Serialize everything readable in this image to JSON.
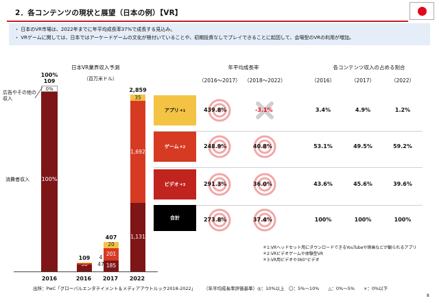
{
  "header": {
    "title": "2．各コンテンツの現状と展望（日本の例）【VR】",
    "bullets": [
      "日本のVR市場は、2022年までに年平均成長率37%で成長する見込み。",
      "VRゲームに関しては、日本ではアーケードゲームの文化が根付いていることや、初期投資なしでプレイできることに起因して、会場型のVRの利用が増加。"
    ]
  },
  "chart_data": {
    "type": "bar",
    "title": "日本VR業界収入予測",
    "unit_label": "（百万米ドル）",
    "categories": [
      "2016",
      "2016",
      "2017",
      "2022"
    ],
    "share_column": {
      "category": "2016",
      "total_pct_label": "100%",
      "total_value_label": "109",
      "segments": [
        {
          "name": "消費者収入",
          "pct_label": "100%"
        },
        {
          "name": "広告やその他の収入",
          "pct_label": "0%"
        }
      ]
    },
    "stacks": [
      {
        "category": "2016",
        "total": 109,
        "total_label": "109",
        "segments": [
          {
            "value": 58,
            "label": "58"
          },
          {
            "value": 47,
            "label": "47"
          },
          {
            "value": 4,
            "label": "4"
          }
        ]
      },
      {
        "category": "2017",
        "total": 407,
        "total_label": "407",
        "segments": [
          {
            "value": 185,
            "label": "185"
          },
          {
            "value": 201,
            "label": "201"
          },
          {
            "value": 20,
            "label": "20"
          }
        ]
      },
      {
        "category": "2022",
        "total": 2859,
        "total_label": "2,859",
        "segments": [
          {
            "value": 1131,
            "label": "1,131"
          },
          {
            "value": 1692,
            "label": "1,692"
          },
          {
            "value": 35,
            "label": "35"
          }
        ]
      }
    ],
    "y_axis_labels": [
      "広告やその他の収入",
      "消費者収入"
    ]
  },
  "table": {
    "cagr_header": "年平均成長率",
    "cagr_periods": [
      "（2016～2017）",
      "（2018～2022）"
    ],
    "share_header": "各コンテンツ収入の占める割合",
    "share_years": [
      "（2016）",
      "（2017）",
      "（2022）"
    ],
    "rows": [
      {
        "label": "アプリ",
        "note": "＊1",
        "cagr1": "439.8%",
        "mark1": "double-circle",
        "cagr2": "-3.1%",
        "mark2": "cross",
        "s2016": "3.4%",
        "s2017": "4.9%",
        "s2022": "1.2%"
      },
      {
        "label": "ゲーム",
        "note": "＊2",
        "cagr1": "248.9%",
        "mark1": "double-circle",
        "cagr2": "40.8%",
        "mark2": "double-circle",
        "s2016": "53.1%",
        "s2017": "49.5%",
        "s2022": "59.2%"
      },
      {
        "label": "ビデオ",
        "note": "＊3",
        "cagr1": "291.3%",
        "mark1": "double-circle",
        "cagr2": "36.0%",
        "mark2": "double-circle",
        "s2016": "43.6%",
        "s2017": "45.6%",
        "s2022": "39.6%"
      },
      {
        "label": "合計",
        "note": "",
        "cagr1": "273.8%",
        "mark1": "double-circle",
        "cagr2": "37.4%",
        "mark2": "double-circle",
        "s2016": "100%",
        "s2017": "100%",
        "s2022": "100%"
      }
    ]
  },
  "notes": [
    "＊1:VRヘッドセット用にダウンロードできるYouTubeや映画などが観られるアプリ",
    "＊2:VRビデオゲームや体験型VR",
    "＊3:VR用ビデオや360°ビデオ"
  ],
  "footer": {
    "source": "出所：PwC「グローバルエンタテイメント＆メディアアウトルック2018-2022」",
    "legend": "（年平均成長率評価基準）◎：10%以上　〇：5%～10%　　△：0%～5%　　×：0%以下",
    "page": "8"
  },
  "colors": {
    "consumer": "#7e1517",
    "game": "#d63a23",
    "app": "#f4c343",
    "video": "#c1241e",
    "total": "#000000",
    "summary_bg": "#e4edf8",
    "accent": "#c21f1f"
  }
}
